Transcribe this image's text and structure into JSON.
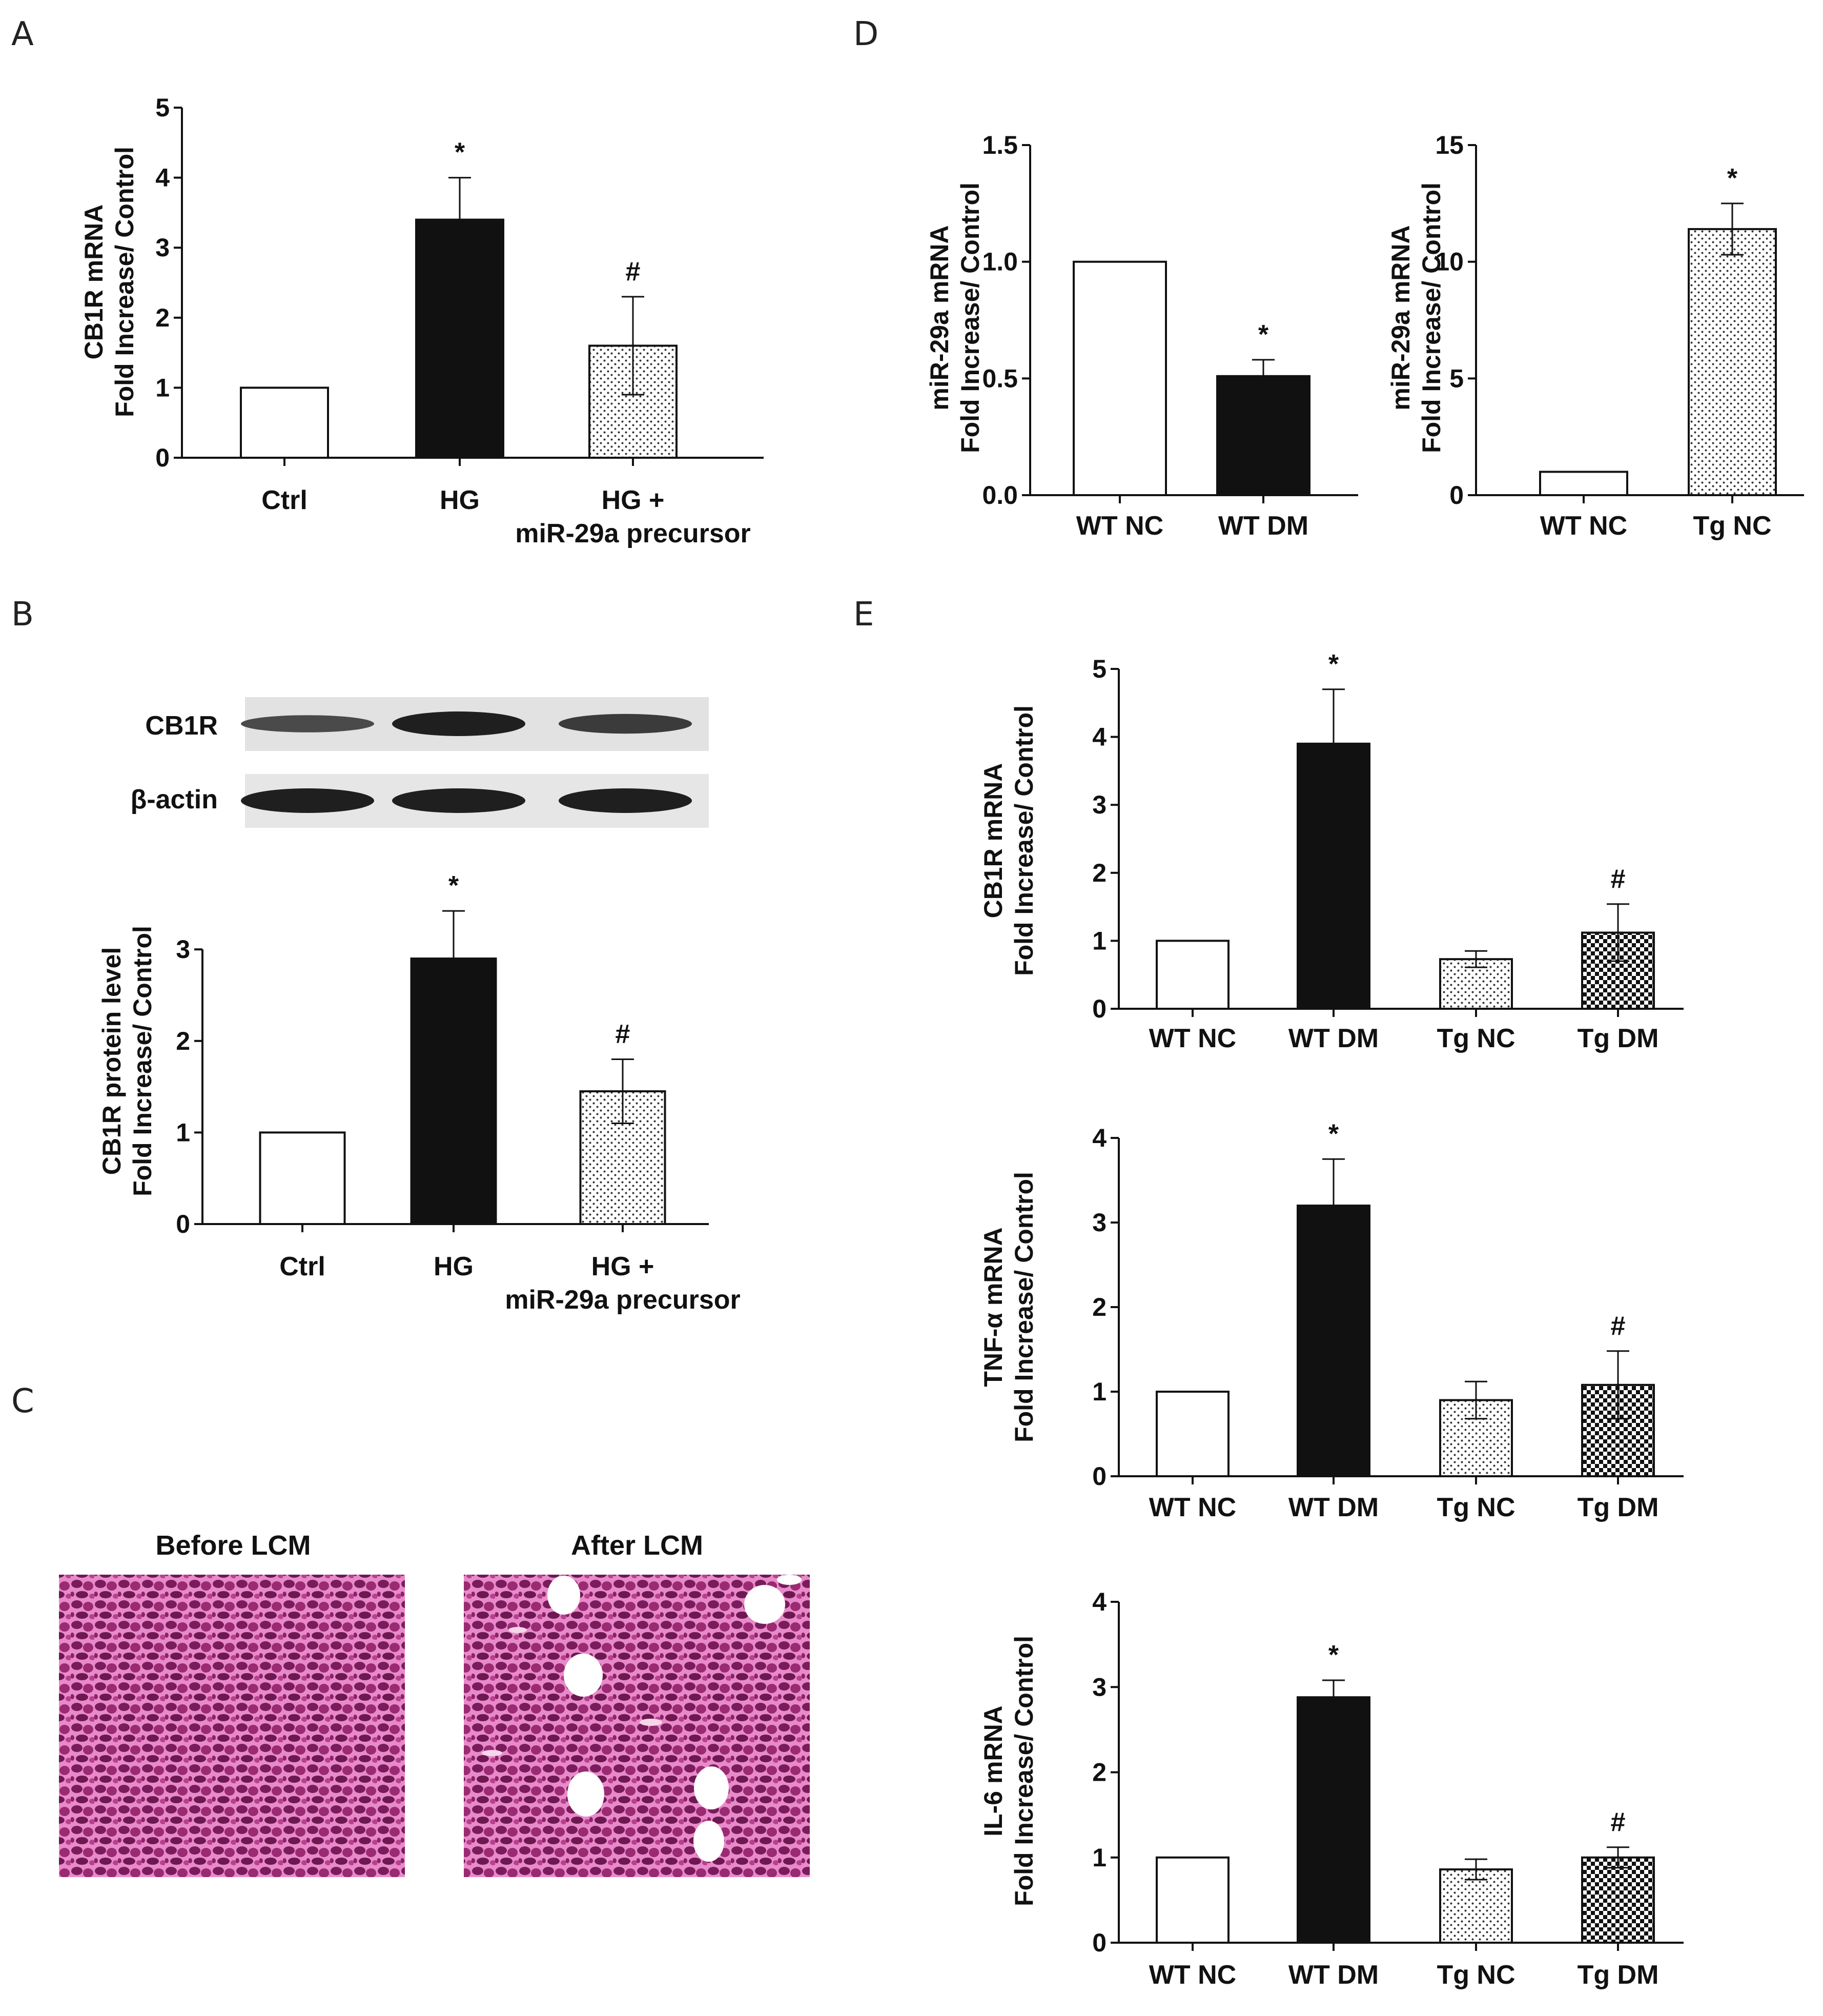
{
  "panels": {
    "A": "A",
    "B": "B",
    "C": "C",
    "D": "D",
    "E": "E"
  },
  "western_blot": {
    "rows": [
      "CB1R",
      "β-actin"
    ],
    "lanes": 3,
    "band_intensity": {
      "CB1R": [
        0.55,
        1.0,
        0.7
      ],
      "β-actin": [
        1.0,
        1.0,
        1.0
      ]
    }
  },
  "histology": {
    "images": [
      "Before LCM",
      "After LCM"
    ],
    "stain_color": "#b0387a"
  },
  "fills": {
    "Ctrl": "empty",
    "HG": "solid",
    "HG+": "dots",
    "WT NC": "empty",
    "WT DM": "solid",
    "Tg NC": "dots",
    "Tg DM": "checker"
  },
  "chart_data": [
    {
      "id": "A",
      "type": "bar",
      "categories": [
        "Ctrl",
        "HG",
        "HG +"
      ],
      "category_lines2": [
        "",
        "",
        "miR-29a precursor"
      ],
      "values": [
        1.0,
        3.4,
        1.6
      ],
      "errors": [
        0,
        0.6,
        0.7
      ],
      "fills": [
        "empty",
        "solid",
        "dots"
      ],
      "annotations": [
        "",
        "*",
        "#"
      ],
      "ylabel": [
        "CB1R mRNA",
        "Fold Increase/ Control"
      ],
      "ylim": [
        0,
        5
      ],
      "yticks": [
        0,
        1,
        2,
        3,
        4,
        5
      ],
      "tick_labels": [
        "0",
        "1",
        "2",
        "3",
        "4",
        "5"
      ]
    },
    {
      "id": "B",
      "type": "bar",
      "categories": [
        "Ctrl",
        "HG",
        "HG +"
      ],
      "category_lines2": [
        "",
        "",
        "miR-29a precursor"
      ],
      "values": [
        1.0,
        2.9,
        1.45
      ],
      "errors": [
        0,
        0.52,
        0.35
      ],
      "fills": [
        "empty",
        "solid",
        "dots"
      ],
      "annotations": [
        "",
        "*",
        "#"
      ],
      "ylabel": [
        "CB1R protein level",
        "Fold Increase/ Control"
      ],
      "ylim": [
        0,
        3.6
      ],
      "yticks": [
        0,
        1,
        2,
        3
      ],
      "tick_labels": [
        "0",
        "1",
        "2",
        "3"
      ]
    },
    {
      "id": "D1",
      "type": "bar",
      "categories": [
        "WT NC",
        "WT DM"
      ],
      "values": [
        1.0,
        0.51
      ],
      "errors": [
        0,
        0.07
      ],
      "fills": [
        "empty",
        "solid"
      ],
      "annotations": [
        "",
        "*"
      ],
      "ylabel": [
        "miR-29a mRNA",
        "Fold Increase/ Control"
      ],
      "ylim": [
        0,
        1.5
      ],
      "yticks": [
        0,
        0.5,
        1.0,
        1.5
      ],
      "tick_labels": [
        "0.0",
        "0.5",
        "1.0",
        "1.5"
      ]
    },
    {
      "id": "D2",
      "type": "bar",
      "categories": [
        "WT NC",
        "Tg NC"
      ],
      "values": [
        1.0,
        11.4
      ],
      "errors": [
        0,
        1.1
      ],
      "fills": [
        "empty",
        "dots"
      ],
      "annotations": [
        "",
        "*"
      ],
      "ylabel": [
        "miR-29a mRNA",
        "Fold Increase/ Control"
      ],
      "ylim": [
        0,
        15
      ],
      "yticks": [
        0,
        5,
        10,
        15
      ],
      "tick_labels": [
        "0",
        "5",
        "10",
        "15"
      ]
    },
    {
      "id": "E1",
      "type": "bar",
      "categories": [
        "WT NC",
        "WT DM",
        "Tg NC",
        "Tg DM"
      ],
      "values": [
        1.0,
        3.9,
        0.73,
        1.12
      ],
      "errors": [
        0,
        0.8,
        0.12,
        0.42
      ],
      "fills": [
        "empty",
        "solid",
        "dots",
        "checker"
      ],
      "annotations": [
        "",
        "*",
        "",
        "#"
      ],
      "ylabel": [
        "CB1R mRNA",
        "Fold Increase/ Control"
      ],
      "ylim": [
        0,
        5
      ],
      "yticks": [
        0,
        1,
        2,
        3,
        4,
        5
      ],
      "tick_labels": [
        "0",
        "1",
        "2",
        "3",
        "4",
        "5"
      ]
    },
    {
      "id": "E2",
      "type": "bar",
      "categories": [
        "WT NC",
        "WT DM",
        "Tg NC",
        "Tg DM"
      ],
      "values": [
        1.0,
        3.2,
        0.9,
        1.08
      ],
      "errors": [
        0,
        0.55,
        0.22,
        0.4
      ],
      "fills": [
        "empty",
        "solid",
        "dots",
        "checker"
      ],
      "annotations": [
        "",
        "*",
        "",
        "#"
      ],
      "ylabel": [
        "TNF-α mRNA",
        "Fold Increase/ Control"
      ],
      "ylim": [
        0,
        4
      ],
      "yticks": [
        0,
        1,
        2,
        3,
        4
      ],
      "tick_labels": [
        "0",
        "1",
        "2",
        "3",
        "4"
      ]
    },
    {
      "id": "E3",
      "type": "bar",
      "categories": [
        "WT NC",
        "WT DM",
        "Tg NC",
        "Tg DM"
      ],
      "values": [
        1.0,
        2.88,
        0.86,
        1.0
      ],
      "errors": [
        0,
        0.2,
        0.12,
        0.12
      ],
      "fills": [
        "empty",
        "solid",
        "dots",
        "checker"
      ],
      "annotations": [
        "",
        "*",
        "",
        "#"
      ],
      "ylabel": [
        "IL-6 mRNA",
        "Fold Increase/ Control"
      ],
      "ylim": [
        0,
        4
      ],
      "yticks": [
        0,
        1,
        2,
        3,
        4
      ],
      "tick_labels": [
        "0",
        "1",
        "2",
        "3",
        "4"
      ]
    }
  ]
}
